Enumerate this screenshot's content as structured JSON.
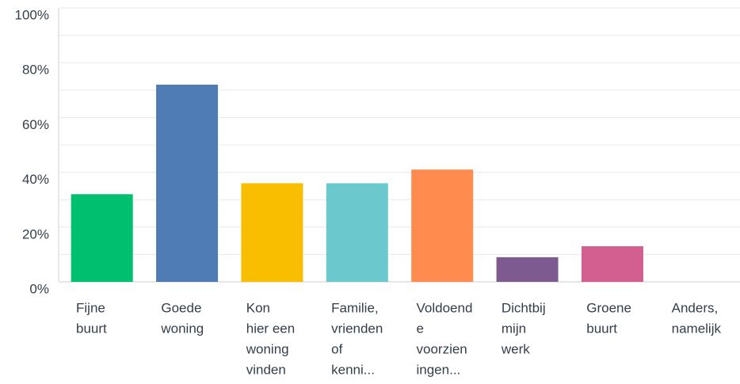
{
  "chart_data": {
    "type": "bar",
    "categories": [
      [
        "Fijne",
        "buurt"
      ],
      [
        "Goede",
        "woning"
      ],
      [
        "Kon",
        "hier een",
        "woning",
        "vinden"
      ],
      [
        "Familie,",
        "vrienden",
        "of",
        "kenni..."
      ],
      [
        "Voldoend",
        "e",
        "voorzien",
        "ingen..."
      ],
      [
        "Dichtbij",
        "mijn",
        "werk"
      ],
      [
        "Groene",
        "buurt"
      ],
      [
        "Anders,",
        "namelijk"
      ]
    ],
    "values": [
      32,
      72,
      36,
      36,
      41,
      9,
      13,
      0
    ],
    "colors": [
      "#00bf6f",
      "#507cb6",
      "#f9be00",
      "#6bc8cd",
      "#ff8b4f",
      "#7d5b91",
      "#d25f90",
      "#dbdbdb"
    ],
    "ylim": [
      0,
      100
    ],
    "yticks": [
      {
        "value": 0,
        "label": "0%"
      },
      {
        "value": 20,
        "label": "20%"
      },
      {
        "value": 40,
        "label": "40%"
      },
      {
        "value": 60,
        "label": "60%"
      },
      {
        "value": 80,
        "label": "80%"
      },
      {
        "value": 100,
        "label": "100%"
      }
    ],
    "minor_yticks": [
      10,
      30,
      50,
      70,
      90
    ],
    "grid": true
  }
}
